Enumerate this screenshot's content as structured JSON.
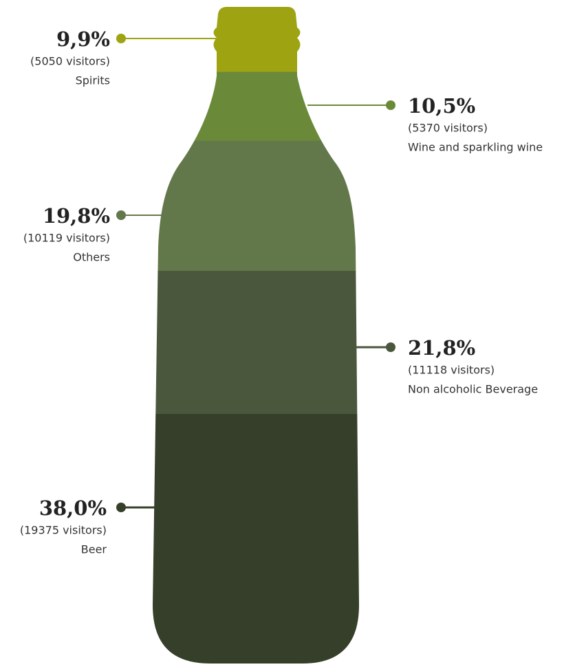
{
  "chart_data": {
    "type": "bottle",
    "categories": [
      "Spirits",
      "Wine and sparkling wine",
      "Others",
      "Non alcoholic Beverage",
      "Beer"
    ],
    "values": [
      9.9,
      10.5,
      19.8,
      21.8,
      38.0
    ],
    "value_labels": [
      "9,9%",
      "10,5%",
      "19,8%",
      "21,8%",
      "38,0%"
    ],
    "visitor_labels": [
      "(5050 visitors)",
      "(5370 visitors)",
      "(10119 visitors)",
      "(11118 visitors)",
      "(19375 visitors)"
    ],
    "colors": [
      "#9ea312",
      "#6a8a3a",
      "#63784a",
      "#4a573c",
      "#353f29"
    ]
  }
}
